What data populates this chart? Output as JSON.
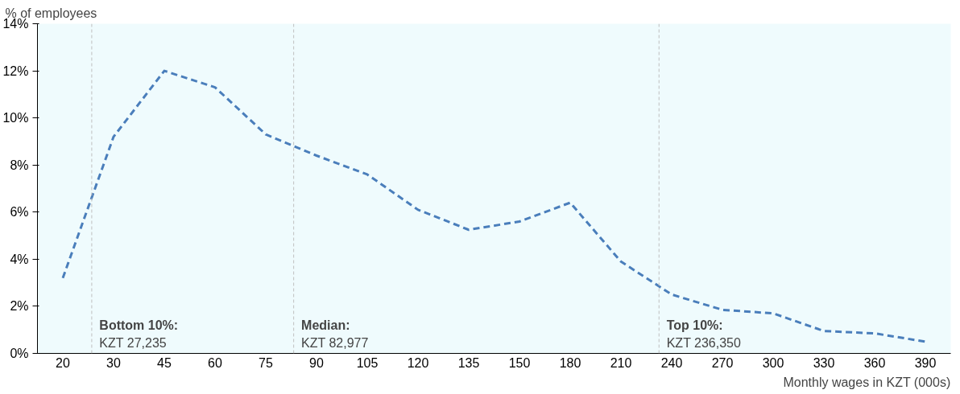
{
  "chart_data": {
    "type": "line",
    "ylabel": "% of employees",
    "xlabel": "Monthly wages in KZT (000s)",
    "categories": [
      "20",
      "30",
      "45",
      "60",
      "75",
      "90",
      "105",
      "120",
      "135",
      "150",
      "180",
      "210",
      "240",
      "270",
      "300",
      "330",
      "360",
      "390"
    ],
    "series": [
      {
        "color": "#4a7ebb",
        "values": [
          3.2,
          9.2,
          12.0,
          11.3,
          9.3,
          8.4,
          7.6,
          6.1,
          5.25,
          5.6,
          6.4,
          3.9,
          2.5,
          1.85,
          1.7,
          0.95,
          0.85,
          0.5
        ]
      }
    ],
    "ylim": [
      0,
      14
    ],
    "yticks": [
      {
        "value": 0,
        "label": "0%"
      },
      {
        "value": 2,
        "label": "2%"
      },
      {
        "value": 4,
        "label": "4%"
      },
      {
        "value": 6,
        "label": "6%"
      },
      {
        "value": 8,
        "label": "8%"
      },
      {
        "value": 10,
        "label": "10%"
      },
      {
        "value": 12,
        "label": "12%"
      },
      {
        "value": 14,
        "label": "14%"
      }
    ],
    "annotations": [
      "Bottom 10%:\nKZT 27,235",
      "Median:\nKZT 82,977",
      "Top 10%:\nKZT 236,350"
    ],
    "grid": false,
    "marker": "none",
    "line_style": "dashed"
  }
}
